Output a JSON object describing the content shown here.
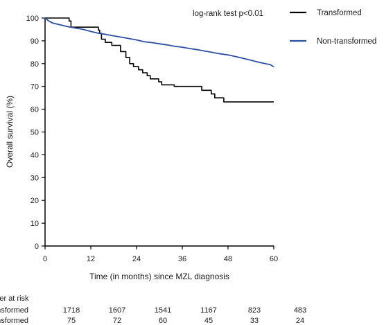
{
  "chart_data": {
    "type": "line",
    "annotation": "log-rank test p<0.01",
    "xlabel": "Time (in months) since MZL diagnosis",
    "ylabel": "Overall survival (%)",
    "xlim": [
      0,
      60
    ],
    "ylim": [
      0,
      100
    ],
    "x_ticks": [
      0,
      12,
      24,
      36,
      48,
      60
    ],
    "y_ticks": [
      0,
      10,
      20,
      30,
      40,
      50,
      60,
      70,
      80,
      90,
      100
    ],
    "legend_position": "top-right",
    "series": [
      {
        "name": "Transformed",
        "color": "#000000",
        "step": true,
        "x": [
          0,
          6.3,
          6.8,
          14,
          14.3,
          14.8,
          15.8,
          17.5,
          19.8,
          21.2,
          22.2,
          23.2,
          24.5,
          25.6,
          26.8,
          27.6,
          29.8,
          30.6,
          32.8,
          33.9,
          35.7,
          39.4,
          41.1,
          42.5,
          43.6,
          44.5,
          45.6,
          46.9,
          52.5,
          60
        ],
        "y": [
          100,
          98.7,
          96,
          94.7,
          93.3,
          90.7,
          89.3,
          88,
          85.3,
          82.7,
          80,
          78.7,
          77.3,
          76,
          74.7,
          73.3,
          72,
          70.7,
          70.7,
          70,
          70,
          70,
          68.3,
          68.3,
          66.7,
          65,
          65,
          63.2,
          63.2,
          63.2
        ]
      },
      {
        "name": "Non-transformed",
        "color": "#2b4ea2",
        "step": false,
        "x": [
          0,
          1,
          2,
          4,
          6,
          8,
          10,
          12,
          14,
          16,
          18,
          20,
          22,
          24,
          26,
          28,
          30,
          32,
          34,
          36,
          38,
          40,
          42,
          44,
          46,
          48,
          50,
          52,
          54,
          56,
          58,
          59,
          60
        ],
        "y": [
          100,
          98.7,
          97.8,
          97,
          96.2,
          95.6,
          95,
          94.1,
          93.3,
          92.8,
          92.2,
          91.6,
          91,
          90.4,
          89.6,
          89.2,
          88.7,
          88.2,
          87.6,
          87.2,
          86.6,
          86.1,
          85.5,
          84.9,
          84.3,
          83.8,
          83.1,
          82.3,
          81.5,
          80.6,
          79.9,
          79.6,
          78.6
        ]
      }
    ],
    "risk_table": {
      "title": "Number at risk",
      "rows": [
        {
          "label": "Non-transformed",
          "values": [
            "1718",
            "1607",
            "1541",
            "1167",
            "823",
            "483"
          ]
        },
        {
          "label": "Transformed",
          "values": [
            "75",
            "72",
            "60",
            "45",
            "33",
            "24"
          ]
        }
      ]
    }
  }
}
